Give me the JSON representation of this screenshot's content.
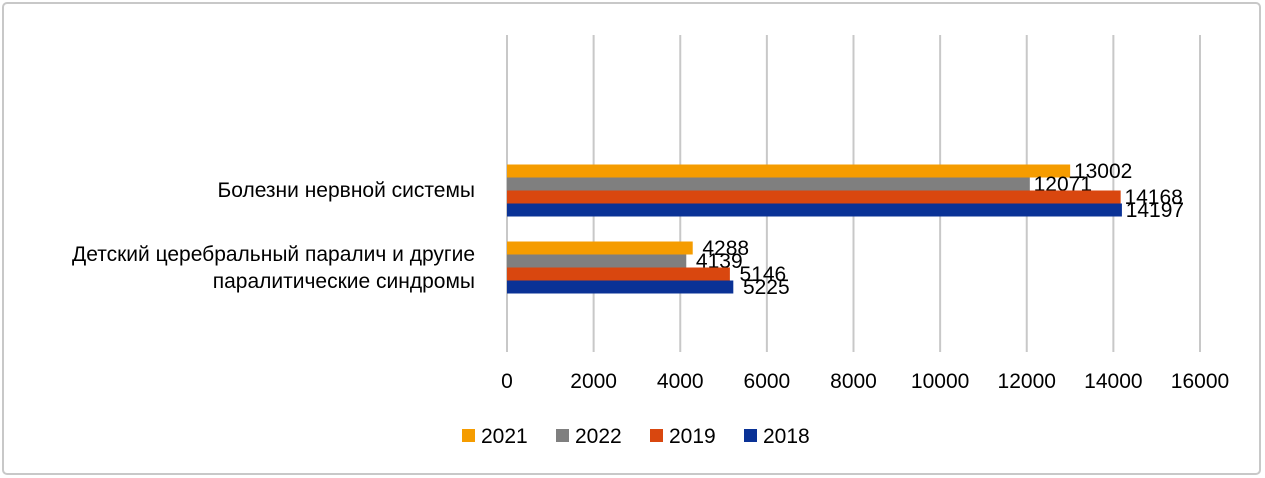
{
  "chart_data": {
    "type": "bar",
    "orientation": "horizontal",
    "categories": [
      "Болезни нервной системы",
      "Детский церебральный паралич и другие паралитические синдромы"
    ],
    "series": [
      {
        "name": "2021",
        "color": "#f59c00",
        "values": [
          13002,
          4288
        ]
      },
      {
        "name": "2022",
        "color": "#7f7f7f",
        "values": [
          12071,
          4139
        ]
      },
      {
        "name": "2019",
        "color": "#d9470f",
        "values": [
          14168,
          5146
        ]
      },
      {
        "name": "2018",
        "color": "#0a3296",
        "values": [
          14197,
          5225
        ]
      }
    ],
    "xlim": [
      0,
      16000
    ],
    "xticks": [
      0,
      2000,
      4000,
      6000,
      8000,
      10000,
      12000,
      14000,
      16000
    ],
    "grid": true,
    "legend": "bottom"
  }
}
